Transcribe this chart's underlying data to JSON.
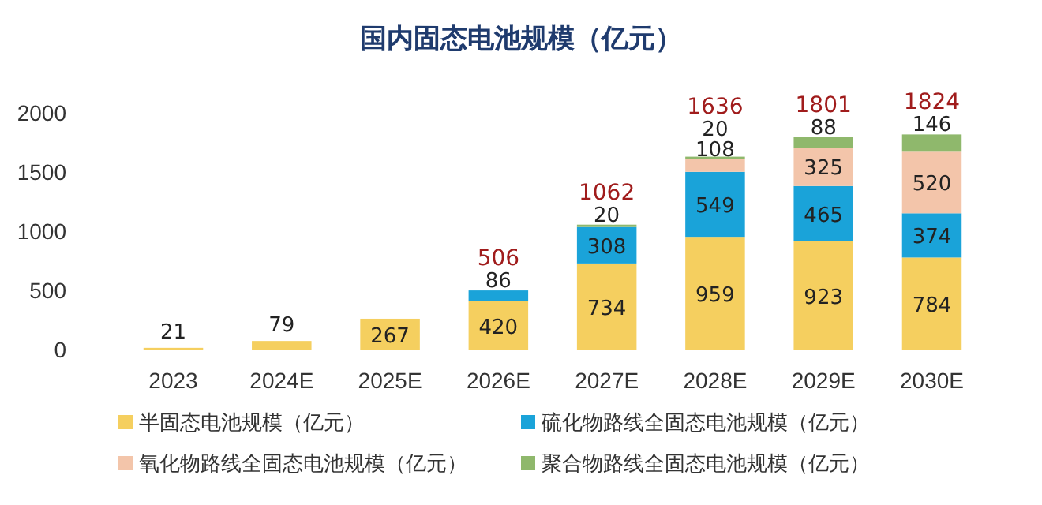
{
  "chart_data": {
    "type": "bar",
    "title": "国内固态电池规模（亿元）",
    "stacked": true,
    "data_labels": true,
    "legend": "bottom",
    "ylim": [
      0,
      2000
    ],
    "yticks": [
      0,
      500,
      1000,
      1500,
      2000
    ],
    "categories": [
      "2023",
      "2024E",
      "2025E",
      "2026E",
      "2027E",
      "2028E",
      "2029E",
      "2030E"
    ],
    "series": [
      {
        "name": "半固态电池规模（亿元）",
        "color": "#f5cf5f",
        "values": [
          21,
          79,
          267,
          420,
          734,
          959,
          923,
          784
        ]
      },
      {
        "name": "硫化物路线全固态电池规模（亿元）",
        "color": "#1aa3d9",
        "values": [
          null,
          null,
          null,
          86,
          308,
          549,
          465,
          374
        ]
      },
      {
        "name": "氧化物路线全固态电池规模（亿元）",
        "color": "#f3c5aa",
        "values": [
          null,
          null,
          null,
          null,
          null,
          108,
          325,
          520
        ]
      },
      {
        "name": "聚合物路线全固态电池规模（亿元）",
        "color": "#8fb86c",
        "values": [
          null,
          null,
          null,
          null,
          20,
          20,
          88,
          146
        ]
      }
    ],
    "totals": [
      null,
      null,
      null,
      "506",
      "1062",
      "1636",
      "1801",
      "1824"
    ]
  }
}
